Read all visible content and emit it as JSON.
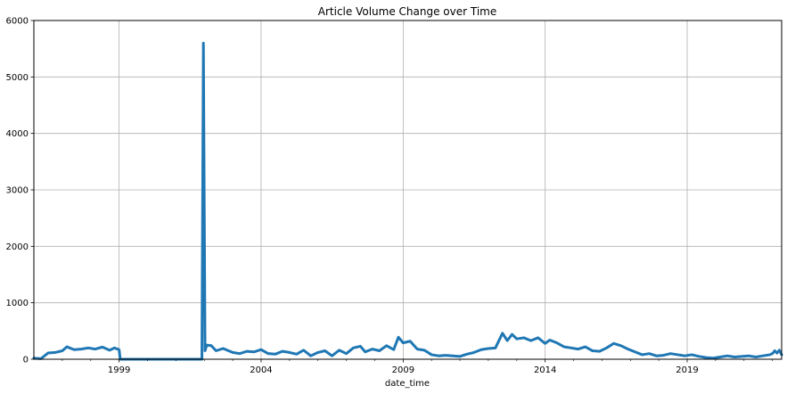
{
  "chart_data": {
    "type": "line",
    "title": "Article Volume Change over Time",
    "xlabel": "date_time",
    "ylabel": "",
    "ylim": [
      0,
      6000
    ],
    "xlim": [
      "1996-01-01",
      "2022-04-30"
    ],
    "yticks": [
      0,
      1000,
      2000,
      3000,
      4000,
      5000,
      6000
    ],
    "xticks": [
      {
        "date": "1999-01-01",
        "label": "1999"
      },
      {
        "date": "2004-01-01",
        "label": "2004"
      },
      {
        "date": "2009-01-01",
        "label": "2009"
      },
      {
        "date": "2014-01-01",
        "label": "2014"
      },
      {
        "date": "2019-01-01",
        "label": "2019"
      }
    ],
    "grid": true,
    "line_color": "#1f77b4",
    "series": [
      {
        "points": [
          [
            "1996-01-01",
            20
          ],
          [
            "1996-04-01",
            10
          ],
          [
            "1996-07-01",
            110
          ],
          [
            "1996-10-01",
            120
          ],
          [
            "1997-01-01",
            150
          ],
          [
            "1997-03-01",
            220
          ],
          [
            "1997-06-01",
            170
          ],
          [
            "1997-09-01",
            180
          ],
          [
            "1997-12-01",
            200
          ],
          [
            "1998-03-01",
            180
          ],
          [
            "1998-06-01",
            215
          ],
          [
            "1998-09-01",
            160
          ],
          [
            "1998-11-01",
            200
          ],
          [
            "1999-01-01",
            170
          ],
          [
            "1999-01-15",
            0
          ],
          [
            "2001-12-01",
            0
          ],
          [
            "2001-12-20",
            5600
          ],
          [
            "2002-01-10",
            150
          ],
          [
            "2002-02-01",
            250
          ],
          [
            "2002-04-01",
            240
          ],
          [
            "2002-06-01",
            150
          ],
          [
            "2002-09-01",
            190
          ],
          [
            "2003-01-01",
            120
          ],
          [
            "2003-04-01",
            100
          ],
          [
            "2003-07-01",
            140
          ],
          [
            "2003-10-01",
            130
          ],
          [
            "2004-01-01",
            170
          ],
          [
            "2004-04-01",
            100
          ],
          [
            "2004-07-01",
            90
          ],
          [
            "2004-10-01",
            140
          ],
          [
            "2005-01-01",
            120
          ],
          [
            "2005-04-01",
            90
          ],
          [
            "2005-07-01",
            160
          ],
          [
            "2005-10-01",
            60
          ],
          [
            "2006-01-01",
            120
          ],
          [
            "2006-04-01",
            150
          ],
          [
            "2006-07-01",
            60
          ],
          [
            "2006-10-01",
            160
          ],
          [
            "2007-01-01",
            100
          ],
          [
            "2007-04-01",
            200
          ],
          [
            "2007-07-01",
            230
          ],
          [
            "2007-09-01",
            130
          ],
          [
            "2007-12-01",
            180
          ],
          [
            "2008-03-01",
            150
          ],
          [
            "2008-06-01",
            240
          ],
          [
            "2008-09-01",
            170
          ],
          [
            "2008-11-01",
            390
          ],
          [
            "2009-01-01",
            290
          ],
          [
            "2009-04-01",
            320
          ],
          [
            "2009-07-01",
            180
          ],
          [
            "2009-10-01",
            160
          ],
          [
            "2010-01-01",
            80
          ],
          [
            "2010-04-01",
            60
          ],
          [
            "2010-07-01",
            70
          ],
          [
            "2010-10-01",
            60
          ],
          [
            "2011-01-01",
            50
          ],
          [
            "2011-04-01",
            90
          ],
          [
            "2011-07-01",
            120
          ],
          [
            "2011-10-01",
            170
          ],
          [
            "2012-01-01",
            190
          ],
          [
            "2012-04-01",
            200
          ],
          [
            "2012-07-01",
            460
          ],
          [
            "2012-09-01",
            330
          ],
          [
            "2012-11-01",
            440
          ],
          [
            "2013-01-01",
            360
          ],
          [
            "2013-04-01",
            380
          ],
          [
            "2013-07-01",
            330
          ],
          [
            "2013-10-01",
            380
          ],
          [
            "2014-01-01",
            280
          ],
          [
            "2014-03-01",
            340
          ],
          [
            "2014-06-01",
            290
          ],
          [
            "2014-09-01",
            220
          ],
          [
            "2014-12-01",
            200
          ],
          [
            "2015-03-01",
            180
          ],
          [
            "2015-06-01",
            220
          ],
          [
            "2015-09-01",
            150
          ],
          [
            "2015-12-01",
            140
          ],
          [
            "2016-03-01",
            200
          ],
          [
            "2016-06-01",
            280
          ],
          [
            "2016-09-01",
            240
          ],
          [
            "2016-12-01",
            180
          ],
          [
            "2017-03-01",
            130
          ],
          [
            "2017-06-01",
            80
          ],
          [
            "2017-09-01",
            100
          ],
          [
            "2017-12-01",
            60
          ],
          [
            "2018-03-01",
            70
          ],
          [
            "2018-06-01",
            100
          ],
          [
            "2018-09-01",
            80
          ],
          [
            "2018-12-01",
            60
          ],
          [
            "2019-03-01",
            80
          ],
          [
            "2019-06-01",
            50
          ],
          [
            "2019-09-01",
            30
          ],
          [
            "2019-12-01",
            20
          ],
          [
            "2020-03-01",
            40
          ],
          [
            "2020-06-01",
            60
          ],
          [
            "2020-09-01",
            40
          ],
          [
            "2020-12-01",
            50
          ],
          [
            "2021-03-01",
            60
          ],
          [
            "2021-06-01",
            40
          ],
          [
            "2021-09-01",
            60
          ],
          [
            "2021-12-01",
            80
          ],
          [
            "2022-01-01",
            100
          ],
          [
            "2022-02-01",
            150
          ],
          [
            "2022-03-01",
            110
          ],
          [
            "2022-04-01",
            160
          ],
          [
            "2022-04-30",
            80
          ]
        ]
      }
    ]
  }
}
